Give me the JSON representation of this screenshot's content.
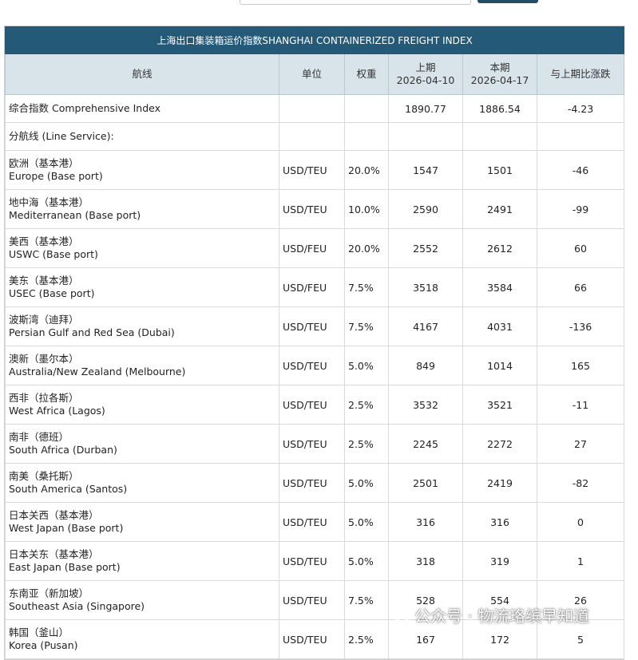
{
  "table": {
    "title": "上海出口集装箱运价指数SHANGHAI CONTAINERIZED FREIGHT INDEX",
    "headers": {
      "route": "航线",
      "unit": "单位",
      "weight": "权重",
      "prev_label": "上期",
      "prev_date": "2026-04-10",
      "curr_label": "本期",
      "curr_date": "2026-04-17",
      "change": "与上期比涨跌"
    },
    "comprehensive": {
      "label": "综合指数 Comprehensive Index",
      "prev": "1890.77",
      "curr": "1886.54",
      "change": "-4.23"
    },
    "line_service_label": "分航线 (Line Service):",
    "routes": [
      {
        "cn": "欧洲（基本港）",
        "en": "Europe (Base port)",
        "unit": "USD/TEU",
        "weight": "20.0%",
        "prev": "1547",
        "curr": "1501",
        "change": "-46"
      },
      {
        "cn": "地中海（基本港）",
        "en": "Mediterranean (Base port)",
        "unit": "USD/TEU",
        "weight": "10.0%",
        "prev": "2590",
        "curr": "2491",
        "change": "-99"
      },
      {
        "cn": "美西（基本港）",
        "en": "USWC (Base port)",
        "unit": "USD/FEU",
        "weight": "20.0%",
        "prev": "2552",
        "curr": "2612",
        "change": "60"
      },
      {
        "cn": "美东（基本港）",
        "en": "USEC (Base port)",
        "unit": "USD/FEU",
        "weight": "7.5%",
        "prev": "3518",
        "curr": "3584",
        "change": "66"
      },
      {
        "cn": "波斯湾（迪拜）",
        "en": "Persian Gulf and Red Sea (Dubai)",
        "unit": "USD/TEU",
        "weight": "7.5%",
        "prev": "4167",
        "curr": "4031",
        "change": "-136"
      },
      {
        "cn": "澳新（墨尔本）",
        "en": "Australia/New Zealand (Melbourne)",
        "unit": "USD/TEU",
        "weight": "5.0%",
        "prev": "849",
        "curr": "1014",
        "change": "165"
      },
      {
        "cn": "西非（拉各斯）",
        "en": "West Africa (Lagos)",
        "unit": "USD/TEU",
        "weight": "2.5%",
        "prev": "3532",
        "curr": "3521",
        "change": "-11"
      },
      {
        "cn": "南非（德班）",
        "en": "South Africa (Durban)",
        "unit": "USD/TEU",
        "weight": "2.5%",
        "prev": "2245",
        "curr": "2272",
        "change": "27"
      },
      {
        "cn": "南美（桑托斯）",
        "en": "South America (Santos)",
        "unit": "USD/TEU",
        "weight": "5.0%",
        "prev": "2501",
        "curr": "2419",
        "change": "-82"
      },
      {
        "cn": "日本关西（基本港）",
        "en": "West Japan (Base port)",
        "unit": "USD/TEU",
        "weight": "5.0%",
        "prev": "316",
        "curr": "316",
        "change": "0"
      },
      {
        "cn": "日本关东（基本港）",
        "en": "East Japan (Base port)",
        "unit": "USD/TEU",
        "weight": "5.0%",
        "prev": "318",
        "curr": "319",
        "change": "1"
      },
      {
        "cn": "东南亚（新加坡）",
        "en": "Southeast Asia (Singapore)",
        "unit": "USD/TEU",
        "weight": "7.5%",
        "prev": "528",
        "curr": "554",
        "change": "26"
      },
      {
        "cn": "韩国（釜山）",
        "en": "Korea (Pusan)",
        "unit": "USD/TEU",
        "weight": "2.5%",
        "prev": "167",
        "curr": "172",
        "change": "5"
      }
    ]
  },
  "watermark": {
    "text": "公众号 · 物流珞缤早知道",
    "icon": "wechat-official-account-icon"
  },
  "colors": {
    "title_bg": "#245a78",
    "header_bg": "#d8e3ea"
  }
}
